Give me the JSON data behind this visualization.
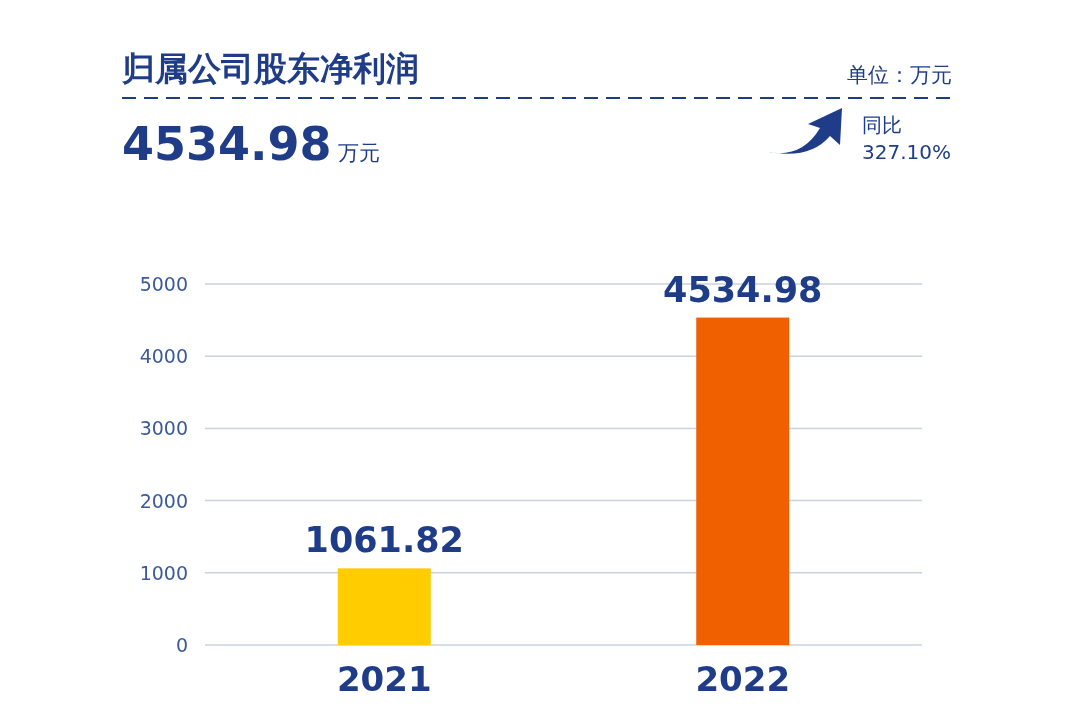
{
  "chart_data": {
    "type": "bar",
    "title": "归属公司股东净利润",
    "subtitle": "4534.98",
    "annotations": [
      "万元",
      "单位：万元",
      "同比",
      "327.10%"
    ],
    "categories": [
      "2021",
      "2022"
    ],
    "values": [
      1061.82,
      4534.98
    ],
    "colors": [
      "#ffcc00",
      "#f06000"
    ],
    "ylim": [
      0,
      5000
    ],
    "yticks": [
      0,
      1000,
      2000,
      3000,
      4000,
      5000
    ],
    "grid": "y",
    "data_labels": true
  }
}
